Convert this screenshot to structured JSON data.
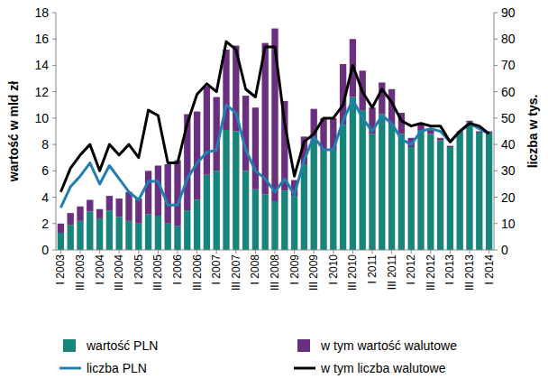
{
  "chart_data": {
    "type": "bar",
    "stacked": true,
    "grid": false,
    "legend": "bottom",
    "y_label": "wartość w mld zł",
    "y2_label": "liczba w tys.",
    "categories": [
      "I 2003",
      null,
      "III 2003",
      null,
      "I 2004",
      null,
      "III 2004",
      null,
      "I 2005",
      null,
      "III 2005",
      null,
      "I 2006",
      null,
      "III 2006",
      null,
      "I 2007",
      null,
      "III 2007",
      null,
      "I 2008",
      null,
      "III 2008",
      null,
      "I 2009",
      null,
      "III 2009",
      null,
      "I 2010",
      null,
      "III 2010",
      null,
      "I 2011",
      null,
      "III 2011",
      null,
      "I 2012",
      null,
      "III 2012",
      null,
      "I 2013",
      null,
      "III 2013",
      null,
      "I 2014"
    ],
    "ylim": [
      0,
      18
    ],
    "yticks": [
      0,
      2,
      4,
      6,
      8,
      10,
      12,
      14,
      16,
      18
    ],
    "y2lim": [
      0,
      90
    ],
    "y2ticks": [
      0,
      10,
      20,
      30,
      40,
      50,
      60,
      70,
      80,
      90
    ],
    "series": [
      {
        "name": "wartość PLN",
        "type": "bar",
        "color": "#17857a",
        "values": [
          1.3,
          1.9,
          2.2,
          2.9,
          2.4,
          3.0,
          2.5,
          2.2,
          2.0,
          2.7,
          2.6,
          2.0,
          1.8,
          3.0,
          3.8,
          5.7,
          6.0,
          9.1,
          9.0,
          6.0,
          4.6,
          4.2,
          3.7,
          4.5,
          4.1,
          6.5,
          8.3,
          7.6,
          7.6,
          9.5,
          11.6,
          10.6,
          8.8,
          10.3,
          9.5,
          8.8,
          7.8,
          9.1,
          8.8,
          8.3,
          7.8,
          8.9,
          9.7,
          8.9,
          8.9
        ]
      },
      {
        "name": "w tym wartość walutowe",
        "type": "bar",
        "color": "#6b2f7f",
        "values": [
          0.7,
          0.9,
          1.1,
          0.9,
          0.7,
          1.1,
          1.4,
          2.2,
          1.9,
          3.3,
          3.8,
          4.5,
          5.0,
          7.3,
          6.7,
          6.7,
          5.6,
          6.1,
          6.5,
          5.7,
          6.2,
          11.5,
          13.1,
          6.8,
          1.2,
          2.1,
          2.4,
          2.4,
          2.4,
          4.6,
          4.4,
          3.0,
          2.0,
          2.4,
          2.7,
          1.6,
          0.7,
          0.5,
          0.3,
          0.2,
          0.1,
          0.1,
          0.1,
          0.1,
          0.1
        ]
      },
      {
        "name": "liczba PLN",
        "type": "line",
        "axis": "y2",
        "color": "#1f7fb0",
        "line_style": "solid",
        "values": [
          16,
          24,
          28,
          33,
          25,
          32,
          27,
          22,
          19,
          26,
          26,
          17,
          17,
          27,
          33,
          37,
          38,
          55,
          52,
          38,
          30,
          27,
          22,
          27,
          21,
          34,
          43,
          38,
          38,
          49,
          57,
          50,
          45,
          51,
          48,
          42,
          40,
          45,
          46,
          45,
          41,
          45,
          48,
          46,
          44
        ]
      },
      {
        "name": "w tym liczba walutowe",
        "type": "line",
        "axis": "y2",
        "color": "#000000",
        "line_style": "solid",
        "values": [
          22,
          31,
          36,
          40,
          30,
          40,
          36,
          40,
          35,
          53,
          51,
          33,
          33,
          48,
          59,
          63,
          60,
          79,
          76,
          61,
          58,
          77,
          77,
          48,
          28,
          41,
          44,
          50,
          50,
          55,
          70,
          60,
          54,
          61,
          56,
          49,
          47,
          48,
          47,
          47,
          41,
          45,
          48,
          47,
          44
        ]
      }
    ]
  }
}
